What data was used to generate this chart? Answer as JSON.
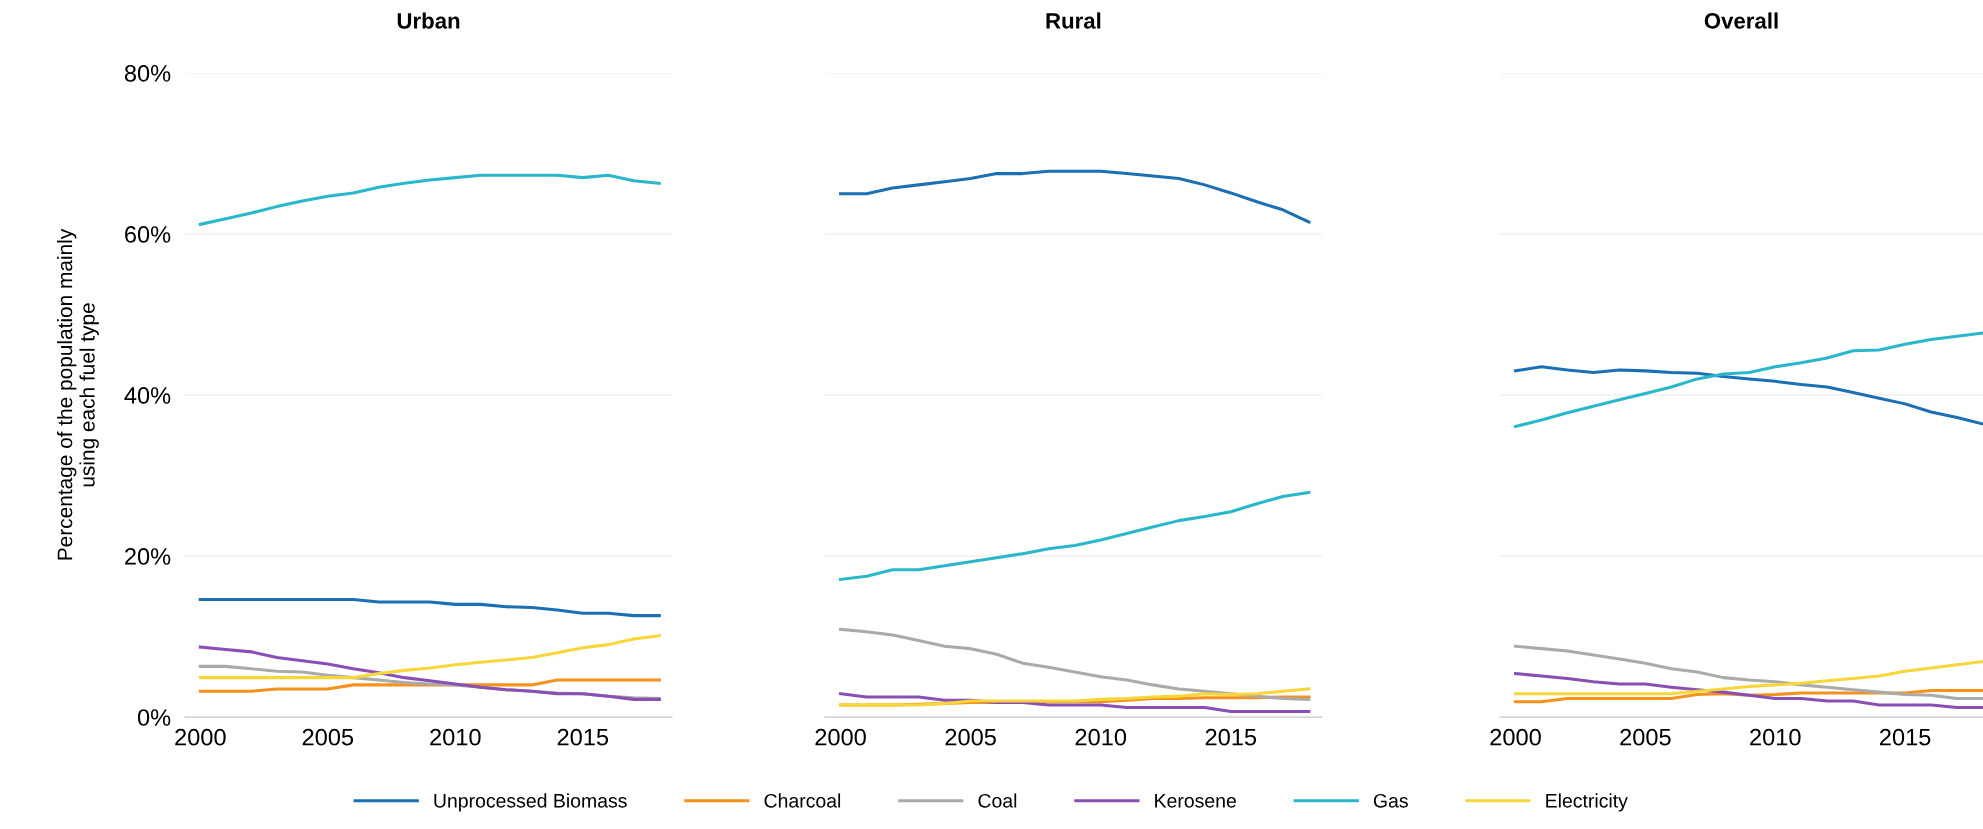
{
  "chart_data": [
    {
      "type": "line",
      "title": "Urban",
      "ylabel": "Percentage of the population mainly\nusing each fuel type",
      "x": [
        2000,
        2001,
        2002,
        2003,
        2004,
        2005,
        2006,
        2007,
        2008,
        2009,
        2010,
        2011,
        2012,
        2013,
        2014,
        2015,
        2016,
        2017,
        2018
      ],
      "xlim": [
        1999.4,
        2018.5
      ],
      "xticks": [
        2000,
        2005,
        2010,
        2015
      ],
      "ylim": [
        0,
        80
      ],
      "yticks": [
        {
          "value": 0,
          "label": "0%"
        },
        {
          "value": 20,
          "label": "20%"
        },
        {
          "value": 40,
          "label": "40%"
        },
        {
          "value": 60,
          "label": "60%"
        },
        {
          "value": 80,
          "label": "80%"
        }
      ],
      "grid": "y",
      "legend": "bottom",
      "series": [
        {
          "name": "Unprocessed Biomass",
          "color": "#1a6fb5",
          "values": [
            14.6,
            14.6,
            14.6,
            14.6,
            14.6,
            14.6,
            14.6,
            14.3,
            14.3,
            14.3,
            14.0,
            14.0,
            13.7,
            13.6,
            13.3,
            12.9,
            12.9,
            12.6,
            12.6
          ]
        },
        {
          "name": "Charcoal",
          "color": "#f5921e",
          "values": [
            3.2,
            3.2,
            3.2,
            3.5,
            3.5,
            3.5,
            4.0,
            4.0,
            4.0,
            4.0,
            4.0,
            4.0,
            4.0,
            4.0,
            4.6,
            4.6,
            4.6,
            4.6,
            4.6
          ]
        },
        {
          "name": "Coal",
          "color": "#aaaaaa",
          "values": [
            6.3,
            6.3,
            6.0,
            5.7,
            5.6,
            5.2,
            4.9,
            4.6,
            4.3,
            4.1,
            4.0,
            3.7,
            3.4,
            3.2,
            3.0,
            2.9,
            2.6,
            2.4,
            2.3
          ]
        },
        {
          "name": "Kerosene",
          "color": "#8a4fb5",
          "values": [
            8.7,
            8.4,
            8.1,
            7.4,
            7.0,
            6.6,
            6.0,
            5.5,
            4.9,
            4.5,
            4.1,
            3.7,
            3.4,
            3.2,
            2.9,
            2.9,
            2.6,
            2.2,
            2.2
          ]
        },
        {
          "name": "Gas",
          "color": "#2ab7ca",
          "values": [
            61.2,
            61.9,
            62.6,
            63.4,
            64.1,
            64.7,
            65.1,
            65.8,
            66.3,
            66.7,
            67.0,
            67.3,
            67.3,
            67.3,
            67.3,
            67.0,
            67.3,
            66.6,
            66.3
          ]
        },
        {
          "name": "Electricity",
          "color": "#f7d63a",
          "values": [
            4.9,
            4.9,
            4.9,
            4.9,
            4.9,
            4.9,
            4.9,
            5.4,
            5.8,
            6.1,
            6.5,
            6.8,
            7.1,
            7.4,
            8.0,
            8.6,
            9.0,
            9.7,
            10.1
          ]
        }
      ]
    },
    {
      "type": "line",
      "title": "Rural",
      "x": [
        2000,
        2001,
        2002,
        2003,
        2004,
        2005,
        2006,
        2007,
        2008,
        2009,
        2010,
        2011,
        2012,
        2013,
        2014,
        2015,
        2016,
        2017,
        2018
      ],
      "xlim": [
        1999.4,
        2018.5
      ],
      "xticks": [
        2000,
        2005,
        2010,
        2015
      ],
      "ylim": [
        0,
        80
      ],
      "yticks": [
        {
          "value": 0,
          "label": null
        },
        {
          "value": 20,
          "label": null
        },
        {
          "value": 40,
          "label": null
        },
        {
          "value": 60,
          "label": null
        },
        {
          "value": 80,
          "label": null
        }
      ],
      "grid": "y",
      "tick_labels": "x",
      "series": [
        {
          "name": "Unprocessed Biomass",
          "color": "#1a6fb5",
          "values": [
            65.0,
            65.0,
            65.7,
            66.1,
            66.5,
            66.9,
            67.5,
            67.5,
            67.8,
            67.8,
            67.8,
            67.5,
            67.2,
            66.9,
            66.1,
            65.1,
            64.0,
            63.0,
            61.5
          ]
        },
        {
          "name": "Charcoal",
          "color": "#f5921e",
          "values": [
            1.5,
            1.5,
            1.5,
            1.6,
            1.7,
            1.8,
            1.8,
            1.8,
            1.9,
            1.9,
            1.9,
            2.1,
            2.3,
            2.3,
            2.4,
            2.4,
            2.4,
            2.5,
            2.5
          ]
        },
        {
          "name": "Coal",
          "color": "#aaaaaa",
          "values": [
            10.9,
            10.6,
            10.2,
            9.5,
            8.8,
            8.5,
            7.8,
            6.7,
            6.2,
            5.6,
            5.0,
            4.6,
            4.0,
            3.5,
            3.2,
            2.9,
            2.6,
            2.3,
            2.2
          ]
        },
        {
          "name": "Kerosene",
          "color": "#8a4fb5",
          "values": [
            2.9,
            2.5,
            2.5,
            2.5,
            2.1,
            2.1,
            1.8,
            1.8,
            1.5,
            1.5,
            1.5,
            1.2,
            1.2,
            1.2,
            1.2,
            0.7,
            0.7,
            0.7,
            0.7
          ]
        },
        {
          "name": "Gas",
          "color": "#2ab7ca",
          "values": [
            17.1,
            17.5,
            18.3,
            18.3,
            18.8,
            19.3,
            19.8,
            20.3,
            20.9,
            21.3,
            22.0,
            22.8,
            23.6,
            24.4,
            24.9,
            25.5,
            26.5,
            27.4,
            27.9
          ]
        },
        {
          "name": "Electricity",
          "color": "#f7d63a",
          "values": [
            1.5,
            1.5,
            1.5,
            1.5,
            1.7,
            2.0,
            2.0,
            2.0,
            2.0,
            2.0,
            2.2,
            2.3,
            2.5,
            2.6,
            2.9,
            2.8,
            2.9,
            3.2,
            3.5
          ]
        }
      ]
    },
    {
      "type": "line",
      "title": "Overall",
      "x": [
        2000,
        2001,
        2002,
        2003,
        2004,
        2005,
        2006,
        2007,
        2008,
        2009,
        2010,
        2011,
        2012,
        2013,
        2014,
        2015,
        2016,
        2017,
        2018
      ],
      "xlim": [
        1999.4,
        2018
      ],
      "xticks": [
        2000,
        2005,
        2010,
        2015
      ],
      "ylim": [
        0,
        80
      ],
      "yticks": [
        {
          "value": 0,
          "label": null
        },
        {
          "value": 20,
          "label": null
        },
        {
          "value": 40,
          "label": null
        },
        {
          "value": 60,
          "label": null
        },
        {
          "value": 80,
          "label": null
        }
      ],
      "grid": "y",
      "tick_labels": "x",
      "series": [
        {
          "name": "Unprocessed Biomass",
          "color": "#1a6fb5",
          "values": [
            43.0,
            43.5,
            43.1,
            42.8,
            43.1,
            43.0,
            42.8,
            42.7,
            42.3,
            42.0,
            41.7,
            41.3,
            41.0,
            40.3,
            39.6,
            38.9,
            37.9,
            37.2,
            36.4
          ]
        },
        {
          "name": "Charcoal",
          "color": "#f5921e",
          "values": [
            1.9,
            1.9,
            2.3,
            2.3,
            2.3,
            2.3,
            2.3,
            2.8,
            2.9,
            2.7,
            2.8,
            3.0,
            3.0,
            3.0,
            3.0,
            3.0,
            3.3,
            3.3,
            3.3
          ]
        },
        {
          "name": "Coal",
          "color": "#aaaaaa",
          "values": [
            8.8,
            8.5,
            8.2,
            7.7,
            7.2,
            6.7,
            6.0,
            5.6,
            4.9,
            4.6,
            4.4,
            4.0,
            3.7,
            3.4,
            3.1,
            2.8,
            2.7,
            2.3,
            2.3
          ]
        },
        {
          "name": "Kerosene",
          "color": "#8a4fb5",
          "values": [
            5.4,
            5.1,
            4.8,
            4.4,
            4.1,
            4.1,
            3.7,
            3.4,
            3.1,
            2.7,
            2.3,
            2.3,
            2.0,
            2.0,
            1.5,
            1.5,
            1.5,
            1.2,
            1.2
          ]
        },
        {
          "name": "Gas",
          "color": "#2ab7ca",
          "values": [
            36.1,
            36.9,
            37.8,
            38.6,
            39.4,
            40.2,
            41.0,
            42.0,
            42.6,
            42.8,
            43.5,
            44.0,
            44.6,
            45.5,
            45.6,
            46.3,
            46.9,
            47.3,
            47.7
          ]
        },
        {
          "name": "Electricity",
          "color": "#f7d63a",
          "values": [
            2.9,
            2.9,
            2.9,
            2.9,
            2.9,
            2.9,
            2.9,
            3.2,
            3.5,
            3.8,
            4.0,
            4.2,
            4.5,
            4.8,
            5.1,
            5.7,
            6.1,
            6.5,
            6.9
          ]
        }
      ]
    }
  ]
}
